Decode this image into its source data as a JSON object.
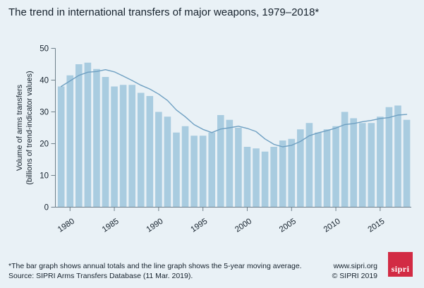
{
  "header": {
    "title": "The trend in international transfers of major weapons, 1979–2018*"
  },
  "chart_data": {
    "type": "bar",
    "title": "The trend in international transfers of major weapons, 1979–2018*",
    "x": [
      1979,
      1980,
      1981,
      1982,
      1983,
      1984,
      1985,
      1986,
      1987,
      1988,
      1989,
      1990,
      1991,
      1992,
      1993,
      1994,
      1995,
      1996,
      1997,
      1998,
      1999,
      2000,
      2001,
      2002,
      2003,
      2004,
      2005,
      2006,
      2007,
      2008,
      2009,
      2010,
      2011,
      2012,
      2013,
      2014,
      2015,
      2016,
      2017,
      2018
    ],
    "series": [
      {
        "name": "Annual totals",
        "type": "bar",
        "values": [
          38,
          41.5,
          45,
          45.5,
          43.5,
          41,
          38,
          38.5,
          38.5,
          36,
          35,
          30,
          28.5,
          23.5,
          25.5,
          22.5,
          22.5,
          23.5,
          29,
          27.5,
          25,
          19,
          18.5,
          17.5,
          19,
          21,
          21.5,
          24.5,
          26.5,
          23.5,
          24.5,
          25.5,
          30,
          28,
          26.5,
          26.5,
          28.5,
          31.5,
          32,
          27.5
        ]
      },
      {
        "name": "5-year moving average",
        "type": "line",
        "derivation": "trailing 5-year moving average of annual totals (window truncated at series start)"
      }
    ],
    "xlabel": "",
    "ylabel_line1": "Volume of arms transfers",
    "ylabel_line2": "(billions of trend-indicator values)",
    "ylim": [
      0,
      50
    ],
    "yticks": [
      0,
      10,
      20,
      30,
      40,
      50
    ],
    "xticks": [
      1980,
      1985,
      1990,
      1995,
      2000,
      2005,
      2010,
      2015
    ],
    "grid": false,
    "legend_position": "none"
  },
  "footer": {
    "note_line1": "*The bar graph shows annual totals and the line graph shows the 5-year moving average.",
    "note_line2": "Source: SIPRI Arms Transfers Database (11 Mar. 2019).",
    "website": "www.sipri.org",
    "copyright": "© SIPRI 2019",
    "logo_text": "sipri"
  },
  "colors": {
    "background": "#e9f1f6",
    "bar": "#a9cce0",
    "line": "#6fa0c2",
    "axis": "#6e7f8a",
    "text": "#16222d",
    "logo_red": "#d22b44"
  }
}
